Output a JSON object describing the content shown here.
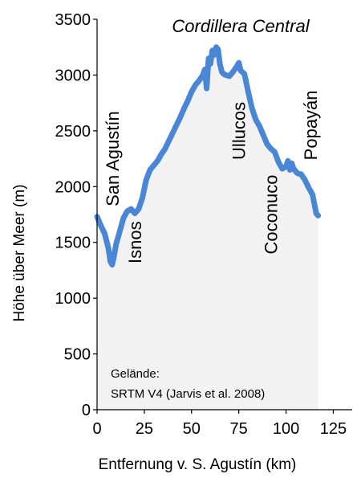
{
  "chart_data": {
    "type": "area",
    "title": "Cordillera Central",
    "xlabel": "Entfernung v. S. Agustín (km)",
    "ylabel": "Höhe über Meer (m)",
    "xlim": [
      0,
      135
    ],
    "ylim": [
      0,
      3500
    ],
    "xticks": [
      0,
      25,
      50,
      75,
      100,
      125
    ],
    "yticks": [
      0,
      500,
      1000,
      1500,
      2000,
      2500,
      3000,
      3500
    ],
    "grid": false,
    "colors": {
      "line": "#4a86d6",
      "fill": "#f2f2f2",
      "axis": "#000000"
    },
    "x": [
      0,
      2,
      4,
      6,
      7,
      8,
      9,
      10,
      12,
      14,
      16,
      18,
      20,
      22,
      24,
      26,
      28,
      30,
      32,
      34,
      36,
      38,
      40,
      42,
      44,
      46,
      48,
      50,
      52,
      54,
      56,
      57,
      58,
      59,
      60,
      61,
      62,
      63,
      64,
      65,
      66,
      67,
      68,
      70,
      72,
      74,
      75,
      76,
      78,
      80,
      82,
      84,
      86,
      88,
      90,
      92,
      94,
      96,
      98,
      100,
      101,
      102,
      103,
      104,
      106,
      108,
      110,
      112,
      114,
      116,
      117
    ],
    "y": [
      1730,
      1650,
      1580,
      1450,
      1330,
      1300,
      1380,
      1480,
      1600,
      1720,
      1780,
      1800,
      1760,
      1800,
      1900,
      2060,
      2150,
      2190,
      2230,
      2290,
      2340,
      2410,
      2480,
      2550,
      2620,
      2700,
      2770,
      2850,
      2910,
      2950,
      3000,
      3050,
      2880,
      3150,
      3100,
      3220,
      3180,
      3250,
      3230,
      3100,
      3030,
      3010,
      3000,
      2990,
      3030,
      3080,
      3110,
      3040,
      3010,
      2850,
      2700,
      2600,
      2540,
      2460,
      2380,
      2340,
      2310,
      2220,
      2160,
      2180,
      2230,
      2150,
      2210,
      2160,
      2120,
      2110,
      2060,
      1990,
      1930,
      1760,
      1740
    ],
    "annotations": [
      {
        "text": "San Agustín",
        "x": 8,
        "y": 2250
      },
      {
        "text": "Isnos",
        "x": 20,
        "y": 1500
      },
      {
        "text": "Ullucos",
        "x": 75,
        "y": 2500
      },
      {
        "text": "Coconuco",
        "x": 92,
        "y": 1750
      },
      {
        "text": "Popayán",
        "x": 113,
        "y": 2550
      }
    ],
    "source_line1": "Gelände:",
    "source_line2": "SRTM V4 (Jarvis et al. 2008)"
  }
}
